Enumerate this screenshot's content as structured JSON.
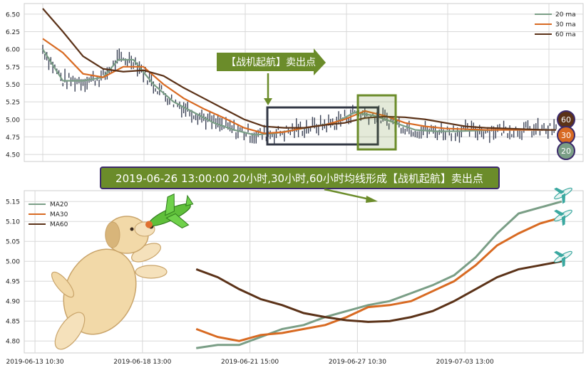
{
  "banner": "2019-06-26 13:00:00 20小时,30小时,60小时均线形成【战机起航】卖出点",
  "colors": {
    "ma20": "#7a9e86",
    "ma30": "#d86a22",
    "ma60": "#5b3218",
    "candle": "#3b4256",
    "frame": "#333846",
    "highlight": "#6b8c2a",
    "banner_bg": "#6b8c2a",
    "banner_border": "#3c2a6b",
    "grid": "#d8d8d8"
  },
  "chart_data": [
    {
      "type": "line",
      "id": "price_panel",
      "ylim": [
        4.45,
        6.6
      ],
      "yticks": [
        "6.50",
        "6.25",
        "6.00",
        "5.75",
        "5.50",
        "5.25",
        "5.00",
        "4.75",
        "4.50"
      ],
      "ytick_values": [
        6.5,
        6.25,
        6.0,
        5.75,
        5.5,
        5.25,
        5.0,
        4.75,
        4.5
      ],
      "legend": {
        "position": "top-right",
        "entries": [
          "20 ma",
          "30 ma",
          "60 ma"
        ]
      },
      "series": [
        {
          "name": "20 ma",
          "x": [
            0,
            2,
            4,
            6,
            7.5,
            9,
            11,
            13,
            15,
            17,
            19,
            21,
            23,
            25,
            27,
            29,
            31,
            33,
            35,
            37,
            39,
            41,
            43,
            45,
            47,
            49,
            51
          ],
          "values": [
            6.0,
            5.55,
            5.55,
            5.6,
            5.85,
            5.85,
            5.5,
            5.25,
            5.1,
            4.95,
            4.85,
            4.78,
            4.8,
            4.85,
            4.9,
            4.95,
            5.1,
            5.05,
            4.95,
            4.85,
            4.83,
            4.83,
            4.84,
            4.85,
            4.85,
            4.85,
            4.85
          ]
        },
        {
          "name": "30 ma",
          "x": [
            0,
            2,
            4,
            6,
            8,
            10,
            12,
            14,
            16,
            18,
            20,
            22,
            24,
            26,
            28,
            30,
            32,
            34,
            36,
            38,
            40,
            42,
            44,
            46,
            48,
            50,
            51
          ],
          "values": [
            6.15,
            5.95,
            5.65,
            5.6,
            5.75,
            5.75,
            5.5,
            5.3,
            5.15,
            5.02,
            4.88,
            4.8,
            4.82,
            4.88,
            4.92,
            5.0,
            5.12,
            5.05,
            4.95,
            4.9,
            4.87,
            4.86,
            4.85,
            4.85,
            4.85,
            4.85,
            4.85
          ]
        },
        {
          "name": "60 ma",
          "x": [
            0,
            2,
            4,
            6,
            8,
            10,
            12,
            14,
            16,
            18,
            20,
            22,
            24,
            26,
            28,
            30,
            32,
            34,
            36,
            38,
            40,
            42,
            44,
            46,
            48,
            50,
            51
          ],
          "values": [
            6.58,
            6.25,
            5.9,
            5.72,
            5.68,
            5.7,
            5.62,
            5.45,
            5.3,
            5.15,
            5.0,
            4.9,
            4.88,
            4.88,
            4.92,
            4.95,
            5.02,
            5.04,
            5.03,
            5.0,
            4.95,
            4.9,
            4.88,
            4.87,
            4.86,
            4.85,
            4.85
          ]
        }
      ],
      "annotations": {
        "arrow_label": "【战机起航】卖出点",
        "badges": [
          "60",
          "30",
          "20"
        ]
      }
    },
    {
      "type": "line",
      "id": "ma_detail_panel",
      "ylim": [
        4.77,
        5.17
      ],
      "yticks": [
        "5.15",
        "5.10",
        "5.05",
        "5.00",
        "4.95",
        "4.90",
        "4.85",
        "4.80"
      ],
      "ytick_values": [
        5.15,
        5.1,
        5.05,
        5.0,
        4.95,
        4.9,
        4.85,
        4.8
      ],
      "xticks": [
        "2019-06-13 10:30",
        "2019-06-18 13:00",
        "2019-06-21 15:00",
        "2019-06-27 10:30",
        "2019-07-03 13:00"
      ],
      "xtick_values": [
        0,
        10,
        20,
        30,
        40
      ],
      "xlim": [
        -1,
        51
      ],
      "legend": {
        "position": "top-left",
        "entries": [
          "MA20",
          "MA30",
          "MA60"
        ]
      },
      "series": [
        {
          "name": "MA20",
          "x": [
            15,
            17,
            19,
            21,
            23,
            25,
            27,
            29,
            31,
            33,
            35,
            37,
            39,
            41,
            43,
            45,
            47,
            49
          ],
          "values": [
            4.782,
            4.79,
            4.79,
            4.81,
            4.83,
            4.84,
            4.86,
            4.875,
            4.89,
            4.9,
            4.92,
            4.94,
            4.965,
            5.01,
            5.07,
            5.12,
            5.135,
            5.15
          ]
        },
        {
          "name": "MA30",
          "x": [
            15,
            17,
            19,
            21,
            23,
            25,
            27,
            29,
            31,
            33,
            35,
            37,
            39,
            41,
            43,
            45,
            47,
            49
          ],
          "values": [
            4.83,
            4.81,
            4.8,
            4.815,
            4.82,
            4.83,
            4.84,
            4.86,
            4.885,
            4.89,
            4.9,
            4.925,
            4.95,
            4.99,
            5.04,
            5.07,
            5.095,
            5.11
          ]
        },
        {
          "name": "MA60",
          "x": [
            15,
            17,
            19,
            21,
            23,
            25,
            27,
            29,
            31,
            33,
            35,
            37,
            39,
            41,
            43,
            45,
            47,
            49
          ],
          "values": [
            4.98,
            4.96,
            4.93,
            4.905,
            4.89,
            4.87,
            4.86,
            4.852,
            4.848,
            4.85,
            4.86,
            4.875,
            4.9,
            4.93,
            4.96,
            4.98,
            4.99,
            5.0
          ]
        }
      ]
    }
  ]
}
